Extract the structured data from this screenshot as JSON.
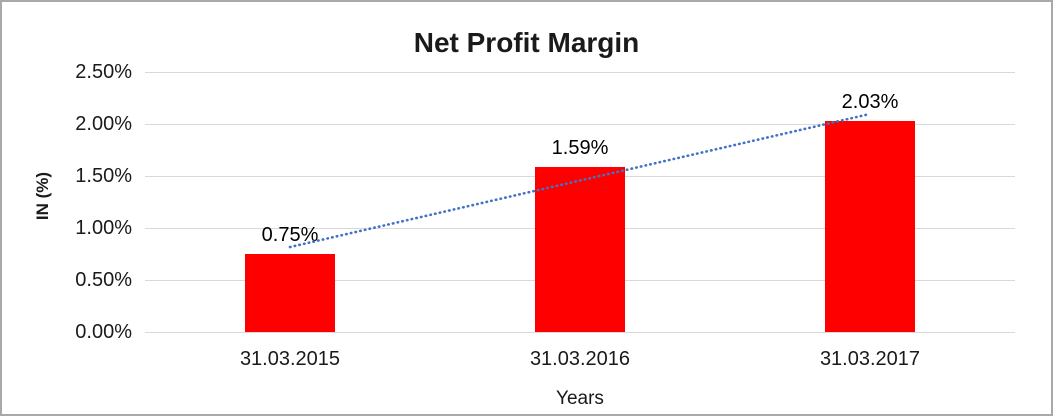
{
  "chart_data": {
    "type": "bar",
    "title": "Net Profit Margin",
    "xlabel": "Years",
    "ylabel": "IN (%)",
    "categories": [
      "31.03.2015",
      "31.03.2016",
      "31.03.2017"
    ],
    "values": [
      0.75,
      1.59,
      2.03
    ],
    "data_labels": [
      "0.75%",
      "1.59%",
      "2.03%"
    ],
    "y_ticks": [
      {
        "value": 0.0,
        "label": "0.00%"
      },
      {
        "value": 0.5,
        "label": "0.50%"
      },
      {
        "value": 1.0,
        "label": "1.00%"
      },
      {
        "value": 1.5,
        "label": "1.50%"
      },
      {
        "value": 2.0,
        "label": "2.00%"
      },
      {
        "value": 2.5,
        "label": "2.50%"
      }
    ],
    "ylim": [
      0,
      2.5
    ],
    "grid": true,
    "legend": "none",
    "bar_color": "#ff0000",
    "gridline_color": "#d9d9d9",
    "trendline": {
      "type": "linear",
      "style": "dotted",
      "color": "#4472c4"
    }
  }
}
